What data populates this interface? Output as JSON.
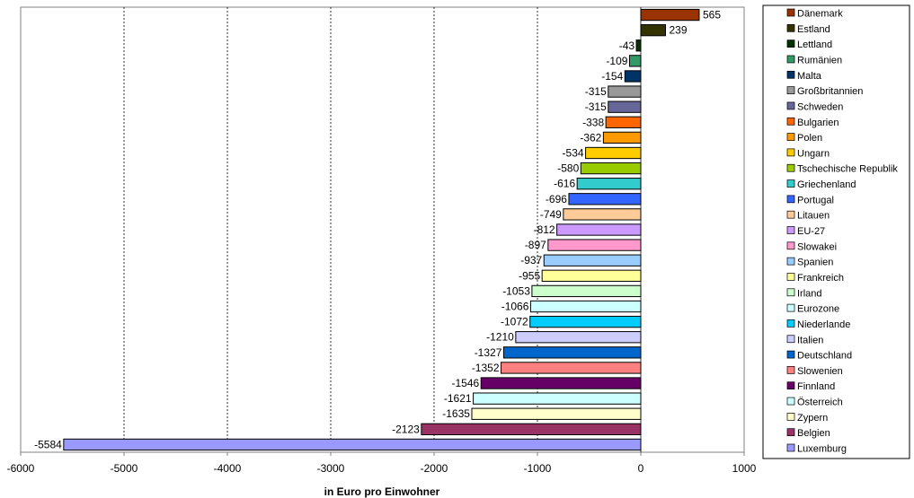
{
  "chart_data": {
    "type": "bar",
    "orientation": "horizontal",
    "xlabel": "in Euro pro Einwohner",
    "xlim": [
      -6000,
      1000
    ],
    "xticks": [
      -6000,
      -5000,
      -4000,
      -3000,
      -2000,
      -1000,
      0,
      1000
    ],
    "grid": "vertical dashed",
    "legend_position": "right",
    "categories": [
      "Dänemark",
      "Estland",
      "Lettland",
      "Rumänien",
      "Malta",
      "Großbritannien",
      "Schweden",
      "Bulgarien",
      "Polen",
      "Ungarn",
      "Tschechische Republik",
      "Griechenland",
      "Portugal",
      "Litauen",
      "EU-27",
      "Slowakei",
      "Spanien",
      "Frankreich",
      "Irland",
      "Eurozone",
      "Niederlande",
      "Italien",
      "Deutschland",
      "Slowenien",
      "Finnland",
      "Österreich",
      "Zypern",
      "Belgien",
      "Luxemburg"
    ],
    "values": [
      565,
      239,
      -43,
      -109,
      -154,
      -315,
      -315,
      -338,
      -362,
      -534,
      -580,
      -616,
      -696,
      -749,
      -812,
      -897,
      -937,
      -955,
      -1053,
      -1066,
      -1072,
      -1210,
      -1327,
      -1352,
      -1546,
      -1621,
      -1635,
      -2123,
      -5584
    ],
    "colors": [
      "#993300",
      "#333300",
      "#003300",
      "#339966",
      "#003366",
      "#999999",
      "#666699",
      "#ff6600",
      "#ff9900",
      "#ffcc00",
      "#99cc00",
      "#33cccc",
      "#3366ff",
      "#ffcc99",
      "#cc99ff",
      "#ff99cc",
      "#99ccff",
      "#ffff99",
      "#ccffcc",
      "#ccffff",
      "#00ccff",
      "#ccccff",
      "#0066cc",
      "#ff8080",
      "#660066",
      "#ccffff",
      "#ffffcc",
      "#993366",
      "#9999ff"
    ]
  }
}
